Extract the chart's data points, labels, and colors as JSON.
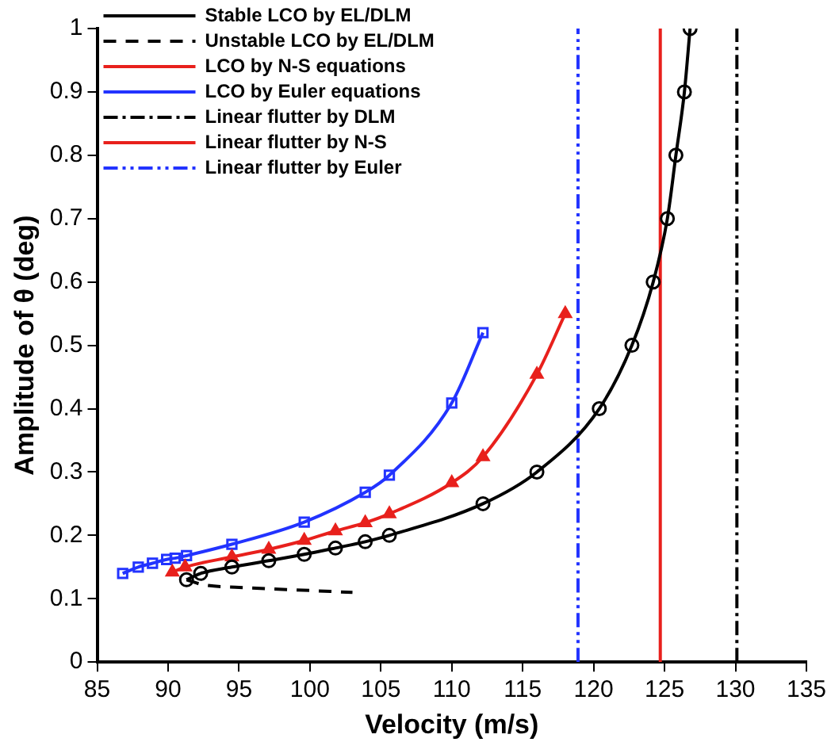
{
  "chart_data": {
    "type": "line",
    "xlabel": "Velocity (m/s)",
    "ylabel": "Amplitude of θ (deg)",
    "xlim": [
      85,
      135
    ],
    "xticks": [
      85,
      90,
      95,
      100,
      105,
      110,
      115,
      120,
      125,
      130,
      135
    ],
    "ylim": [
      0,
      1
    ],
    "yticks": [
      0,
      0.1,
      0.2,
      0.3,
      0.4,
      0.5,
      0.6,
      0.7,
      0.8,
      0.9,
      1
    ],
    "grid": false,
    "legend": "top",
    "series": [
      {
        "name": "Stable LCO by EL/DLM",
        "color": "#000000",
        "marker": "circle",
        "line_style": "solid",
        "x": [
          91.3,
          92.3,
          94.5,
          97.1,
          99.6,
          101.8,
          103.9,
          105.6,
          112.2,
          116,
          120.4,
          122.7,
          124.2,
          125.2,
          125.8,
          126.4,
          126.8
        ],
        "values": [
          0.13,
          0.14,
          0.15,
          0.16,
          0.17,
          0.18,
          0.19,
          0.2,
          0.25,
          0.3,
          0.4,
          0.5,
          0.6,
          0.7,
          0.8,
          0.9,
          1
        ]
      },
      {
        "name": "Unstable LCO by EL/DLM",
        "color": "#000000",
        "marker": "none",
        "line_style": "dashed",
        "x": [
          91.3,
          92.5,
          95,
          100,
          103
        ],
        "values": [
          0.13,
          0.122,
          0.118,
          0.113,
          0.11
        ]
      },
      {
        "name": "LCO by N-S equations",
        "color": "#e8201c",
        "marker": "triangle",
        "line_style": "solid",
        "x": [
          90.3,
          91.2,
          94.5,
          97.1,
          99.6,
          101.8,
          103.9,
          105.6,
          110,
          112.2,
          116,
          118
        ],
        "values": [
          0.142,
          0.15,
          0.166,
          0.178,
          0.192,
          0.207,
          0.22,
          0.234,
          0.283,
          0.324,
          0.454,
          0.55
        ]
      },
      {
        "name": "LCO by Euler equations",
        "color": "#2233ff",
        "marker": "square",
        "line_style": "solid",
        "x": [
          86.8,
          87.9,
          88.9,
          89.9,
          90.5,
          91.3,
          94.5,
          99.6,
          103.9,
          105.6,
          110,
          112.2
        ],
        "values": [
          0.14,
          0.15,
          0.156,
          0.162,
          0.164,
          0.168,
          0.186,
          0.221,
          0.268,
          0.295,
          0.409,
          0.52
        ]
      },
      {
        "name": "Linear flutter by DLM",
        "color": "#000000",
        "marker": "none",
        "line_style": "dashdot",
        "x": [
          130.1,
          130.1
        ],
        "values": [
          0,
          1
        ]
      },
      {
        "name": "Linear flutter by N-S",
        "color": "#e8201c",
        "marker": "none",
        "line_style": "solid",
        "x": [
          124.7,
          124.7
        ],
        "values": [
          0,
          1
        ]
      },
      {
        "name": "Linear flutter by Euler",
        "color": "#2233ff",
        "marker": "none",
        "line_style": "dashdotdot",
        "x": [
          118.9,
          118.9
        ],
        "values": [
          0,
          1
        ]
      }
    ]
  }
}
